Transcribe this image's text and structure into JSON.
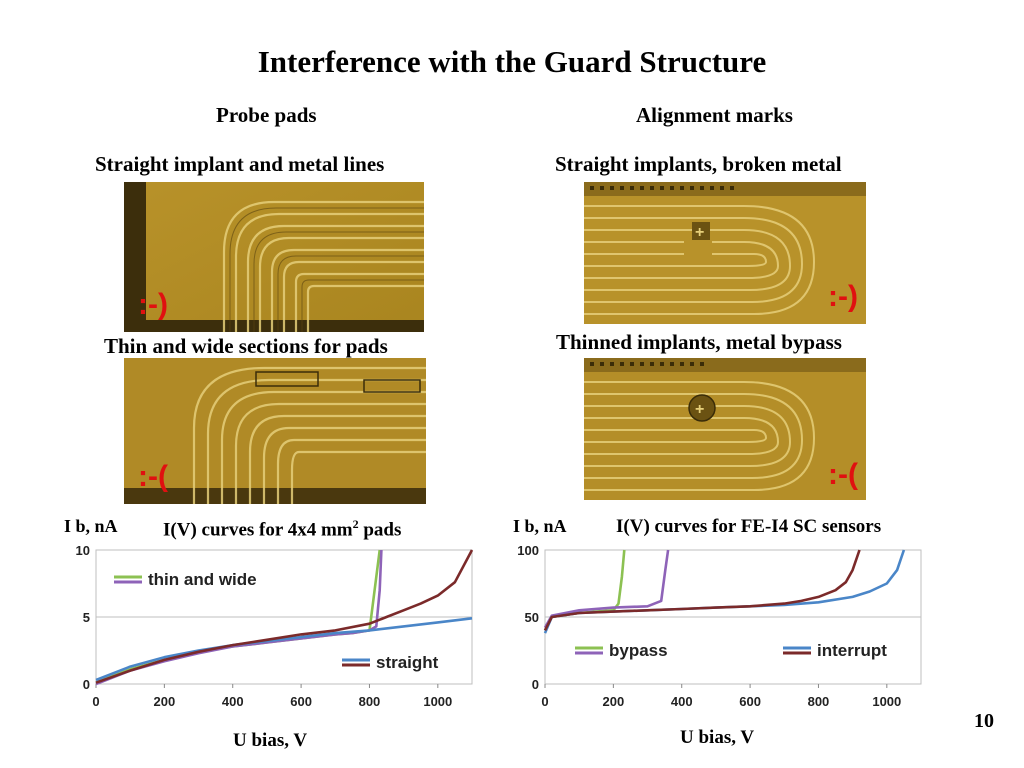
{
  "slide": {
    "title": "Interference with the Guard Structure",
    "page_number": "10"
  },
  "columns": {
    "left_heading": "Probe pads",
    "right_heading": "Alignment marks"
  },
  "photos": [
    {
      "caption": "Straight implant and metal lines",
      "smiley": ":-)",
      "smiley_color": "#e01010"
    },
    {
      "caption": "Thin and wide sections for pads",
      "smiley": ":-(",
      "smiley_color": "#e01010"
    },
    {
      "caption": "Straight implants, broken metal",
      "smiley": ":-)",
      "smiley_color": "#e01010"
    },
    {
      "caption": "Thinned implants, metal bypass",
      "smiley": ":-(",
      "smiley_color": "#e01010"
    }
  ],
  "colors": {
    "photo_gold": "#c9a52c",
    "photo_dark": "#3a2c08",
    "green": "#8cc152",
    "purple": "#8e63b8",
    "blue": "#4a86c8",
    "darkred": "#7b2a2a"
  },
  "chart_left": {
    "ylabel": "I b, nA",
    "title_main": "I(V) curves for 4x4 mm",
    "title_sup": "2",
    "title_tail": " pads",
    "xlabel": "U bias, V"
  },
  "chart_right": {
    "ylabel": "I b, nA",
    "title": "I(V) curves for FE-I4 SC sensors",
    "xlabel": "U bias, V"
  },
  "chart_data": [
    {
      "type": "line",
      "title": "I(V) curves for 4x4 mm2 pads",
      "xlabel": "U bias, V",
      "ylabel": "I b, nA",
      "xlim": [
        0,
        1100
      ],
      "ylim": [
        0,
        10
      ],
      "xticks": [
        "0",
        "200",
        "400",
        "600",
        "800",
        "1000"
      ],
      "yticks": [
        "0",
        "5",
        "10"
      ],
      "legend": [
        {
          "label": "thin and wide",
          "colors": [
            "#8cc152",
            "#8e63b8"
          ],
          "position": "top-left"
        },
        {
          "label": "straight",
          "colors": [
            "#4a86c8",
            "#7b2a2a"
          ],
          "position": "bottom-right"
        }
      ],
      "series": [
        {
          "color": "#8cc152",
          "x": [
            0,
            100,
            200,
            300,
            400,
            500,
            600,
            700,
            750,
            800,
            830
          ],
          "y": [
            0.1,
            1.1,
            1.8,
            2.4,
            2.8,
            3.1,
            3.4,
            3.7,
            3.8,
            4.0,
            10
          ]
        },
        {
          "color": "#8e63b8",
          "x": [
            0,
            100,
            200,
            300,
            400,
            500,
            600,
            700,
            750,
            800,
            820,
            830,
            835
          ],
          "y": [
            0.0,
            1.0,
            1.7,
            2.3,
            2.8,
            3.1,
            3.4,
            3.7,
            3.8,
            4.0,
            4.3,
            7.0,
            10
          ]
        },
        {
          "color": "#4a86c8",
          "x": [
            0,
            100,
            200,
            300,
            400,
            500,
            600,
            700,
            800,
            900,
            1000,
            1100
          ],
          "y": [
            0.3,
            1.3,
            2.0,
            2.5,
            2.9,
            3.2,
            3.5,
            3.8,
            4.0,
            4.3,
            4.6,
            4.9
          ]
        },
        {
          "color": "#7b2a2a",
          "x": [
            0,
            100,
            200,
            300,
            400,
            500,
            600,
            700,
            800,
            850,
            900,
            950,
            1000,
            1050,
            1100
          ],
          "y": [
            0.1,
            1.0,
            1.8,
            2.4,
            2.9,
            3.3,
            3.7,
            4.0,
            4.5,
            5.0,
            5.5,
            6.0,
            6.6,
            7.6,
            10
          ]
        }
      ]
    },
    {
      "type": "line",
      "title": "I(V) curves for FE-I4 SC sensors",
      "xlabel": "U bias, V",
      "ylabel": "I b, nA",
      "xlim": [
        0,
        1100
      ],
      "ylim": [
        0,
        100
      ],
      "xticks": [
        "0",
        "200",
        "400",
        "600",
        "800",
        "1000"
      ],
      "yticks": [
        "0",
        "50",
        "100"
      ],
      "legend": [
        {
          "label": "bypass",
          "colors": [
            "#8cc152",
            "#8e63b8"
          ],
          "position": "bottom-left"
        },
        {
          "label": "interrupt",
          "colors": [
            "#4a86c8",
            "#7b2a2a"
          ],
          "position": "bottom-right"
        }
      ],
      "series": [
        {
          "color": "#8cc152",
          "x": [
            0,
            20,
            100,
            150,
            200,
            215,
            225,
            232
          ],
          "y": [
            40,
            50,
            53,
            54,
            55,
            60,
            80,
            100
          ]
        },
        {
          "color": "#8e63b8",
          "x": [
            0,
            20,
            100,
            200,
            300,
            340,
            352,
            360
          ],
          "y": [
            42,
            51,
            55,
            57,
            58,
            62,
            85,
            100
          ]
        },
        {
          "color": "#4a86c8",
          "x": [
            0,
            20,
            100,
            200,
            300,
            400,
            500,
            600,
            700,
            800,
            900,
            950,
            1000,
            1030,
            1050
          ],
          "y": [
            38,
            50,
            53,
            54,
            55,
            56,
            57,
            58,
            59,
            61,
            65,
            69,
            75,
            85,
            100
          ]
        },
        {
          "color": "#7b2a2a",
          "x": [
            0,
            20,
            100,
            200,
            300,
            400,
            500,
            600,
            700,
            750,
            800,
            850,
            880,
            900,
            920
          ],
          "y": [
            40,
            50,
            53,
            54,
            55,
            56,
            57,
            58,
            60,
            62,
            65,
            70,
            76,
            85,
            100
          ]
        }
      ]
    }
  ]
}
